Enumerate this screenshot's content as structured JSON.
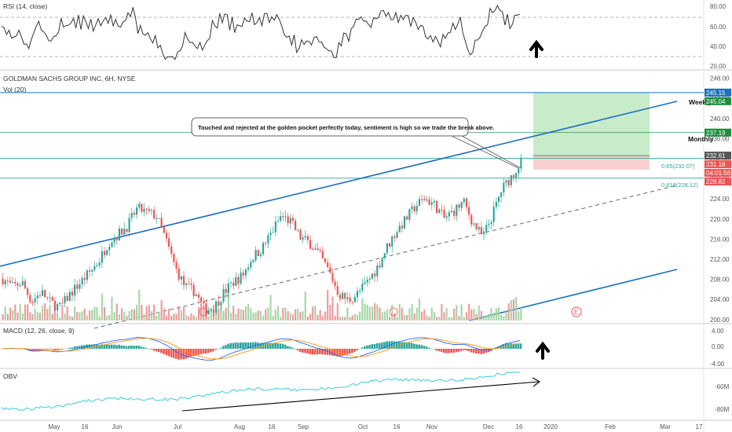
{
  "symbol": {
    "title": "GOLDMAN SACHS GROUP INC, 6H, NYSE",
    "vol_label": "Vol (20)"
  },
  "indicators": {
    "rsi_label": "RSI (14, close)",
    "macd_label": "MACD (12, 26, close, 9)",
    "obv_label": "OBV"
  },
  "annotation": {
    "text": "Touched and rejected at the golden pocket perfectly today, sentiment is high so we trade the break above."
  },
  "lines": {
    "weekly": "Weekly",
    "monthly": "Monthly"
  },
  "fib": {
    "level_065": "0.65(232.07)",
    "level_0618": "0.618(228.12)"
  },
  "event_marker": "E",
  "colors": {
    "up": "#26a69a",
    "down": "#ef5350",
    "channel": "#1e6fc0",
    "profit_zone": "#c8ebc9",
    "loss_zone": "#f8d0d0",
    "macd_line": "#2962ff",
    "signal_line": "#ff9800",
    "obv_line": "#26c6da",
    "rsi_line": "#333333"
  },
  "icons": [
    "up-arrow-icon",
    "diagonal-arrow-icon"
  ],
  "chart_data": {
    "type": "candlestick",
    "y_axis": {
      "ticks": [
        "248.00",
        "244.00",
        "240.00",
        "236.00",
        "232.00",
        "228.00",
        "224.00",
        "220.00",
        "216.00",
        "212.00",
        "208.00",
        "204.00",
        "200.00"
      ],
      "range": [
        199.5,
        249.5
      ]
    },
    "x_axis": {
      "ticks": [
        "May",
        "16",
        "Jun",
        "Jul",
        "Aug",
        "16",
        "Sep",
        "Oct",
        "16",
        "Nov",
        "Dec",
        "16",
        "2020",
        "Feb",
        "Mar",
        "17"
      ]
    },
    "price_labels": [
      {
        "value": 245.15,
        "text": "245.15",
        "color": "#1e6fc0"
      },
      {
        "value": 245.04,
        "text": "245.04",
        "color": "#1e8f3c"
      },
      {
        "value": 237.19,
        "text": "237.19",
        "color": "#1e8f3c"
      },
      {
        "value": 232.61,
        "text": "232.61",
        "color": "#555555"
      },
      {
        "value": 231.16,
        "text": "231.16",
        "color": "#ef5350"
      },
      {
        "value": 229.8,
        "text": "04:01:56",
        "color": "#ef5350"
      },
      {
        "value": 228.82,
        "text": "228.82",
        "color": "#ef5350"
      }
    ],
    "horizontal_levels": [
      245.15,
      237.19,
      232.61,
      228.12
    ],
    "target_zone": {
      "entry": 232.61,
      "target": 245.04,
      "stop": 229.8
    },
    "closes": [
      208.1,
      206.5,
      207.4,
      203.6,
      205.5,
      203.3,
      202.4,
      205.1,
      207.2,
      209.3,
      211.6,
      215.4,
      216.9,
      218.7,
      222.1,
      221.3,
      220.6,
      215.8,
      210.2,
      206.5,
      205.6,
      201.9,
      202.4,
      205.3,
      207.4,
      208.8,
      212.4,
      214.1,
      217.3,
      220.6,
      219.4,
      216.3,
      215.2,
      212.8,
      209.5,
      205.1,
      203.8,
      205.2,
      207.5,
      210.3,
      214.3,
      217.6,
      219.9,
      222.6,
      224.1,
      222.8,
      220.1,
      221.6,
      223.4,
      219.2,
      216.4,
      220.7,
      225.9,
      228.5,
      231.3
    ],
    "rsi": {
      "ticks": [
        "80.00",
        "60.00",
        "40.00",
        "20.00"
      ],
      "levels": [
        70,
        30
      ]
    },
    "macd": {
      "ticks": [
        "4.00",
        "0.00",
        "-4.00"
      ]
    },
    "obv": {
      "ticks": [
        "-60M",
        "-80M"
      ]
    }
  }
}
